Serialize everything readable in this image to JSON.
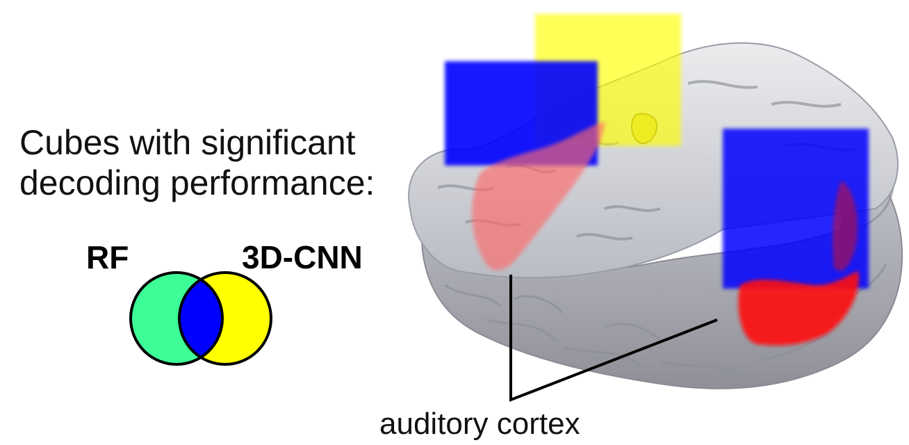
{
  "caption": {
    "line1": "Cubes with significant",
    "line2": "decoding performance:"
  },
  "legend": {
    "left_label": "RF",
    "right_label": "3D-CNN",
    "colors": {
      "rf_only": "#3dfd96",
      "cnn_only": "#ffff00",
      "both": "#0000ff"
    }
  },
  "figure": {
    "annotation": "auditory cortex",
    "icon": "brain-render-icon"
  }
}
